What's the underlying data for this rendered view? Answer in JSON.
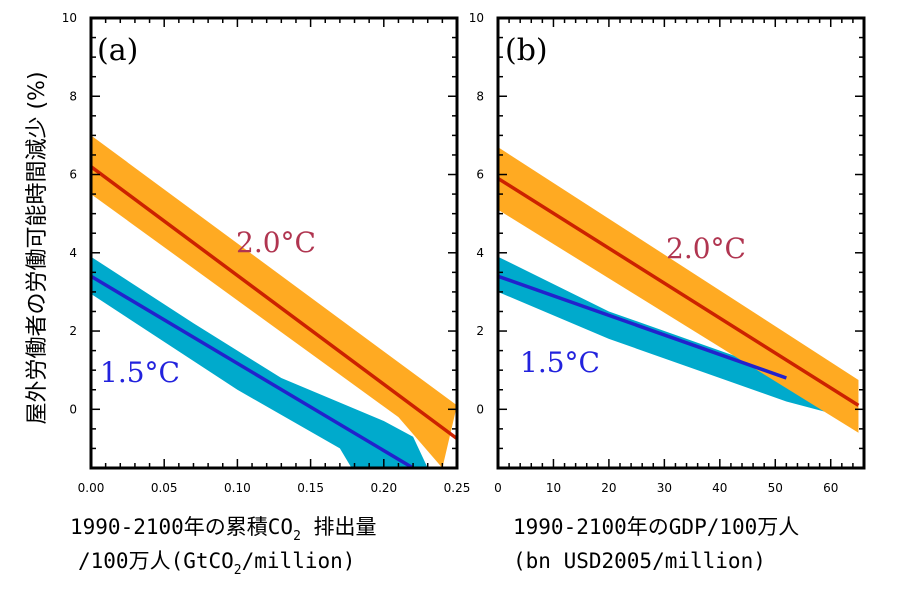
{
  "figure": {
    "ylabel": "屋外労働者の労働可能時間減少 (%)"
  },
  "chart_data": [
    {
      "type": "line",
      "panel_label": "(a)",
      "xlabel_line1_pre": "1990-2100年の累積CO",
      "xlabel_line1_sub": "2",
      "xlabel_line1_post": " 排出量",
      "xlabel_line2_pre": "/100万人(GtCO",
      "xlabel_line2_sub": "2",
      "xlabel_line2_post": "/million)",
      "xlim": [
        0,
        0.25
      ],
      "ylim": [
        -1.5,
        10
      ],
      "x_ticks": [
        0,
        0.05,
        0.1,
        0.15,
        0.2,
        0.25
      ],
      "x_tick_labels": [
        "0.00",
        "0.05",
        "0.10",
        "0.15",
        "0.20",
        "0.25"
      ],
      "y_ticks": [
        0,
        2,
        4,
        6,
        8,
        10
      ],
      "y_tick_labels": [
        "0",
        "2",
        "4",
        "6",
        "8",
        "10"
      ],
      "series": [
        {
          "name": "1.5°C",
          "line_color": "#2222cc",
          "band_color": "#00aacc",
          "label_color": "#2222dd",
          "line": [
            [
              0,
              3.4
            ],
            [
              0.22,
              -1.5
            ]
          ],
          "band_upper": [
            [
              0,
              3.9
            ],
            [
              0.07,
              2.2
            ],
            [
              0.13,
              0.8
            ],
            [
              0.2,
              -0.3
            ],
            [
              0.22,
              -0.7
            ],
            [
              0.23,
              -1.5
            ]
          ],
          "band_lower": [
            [
              0,
              2.95
            ],
            [
              0.1,
              0.5
            ],
            [
              0.17,
              -1.0
            ],
            [
              0.178,
              -1.5
            ]
          ]
        },
        {
          "name": "2.0°C",
          "line_color": "#cc2200",
          "band_color": "#ffaa22",
          "label_color": "#b03550",
          "line": [
            [
              0,
              6.2
            ],
            [
              0.25,
              -0.75
            ]
          ],
          "band_upper": [
            [
              0,
              7.0
            ],
            [
              0.25,
              0.1
            ]
          ],
          "band_lower": [
            [
              0,
              5.5
            ],
            [
              0.21,
              -0.2
            ],
            [
              0.24,
              -1.5
            ]
          ]
        }
      ]
    },
    {
      "type": "line",
      "panel_label": "(b)",
      "xlabel_line1": "1990-2100年のGDP/100万人",
      "xlabel_line2": "(bn USD2005/million)",
      "xlim": [
        0,
        66
      ],
      "ylim": [
        -1.5,
        10
      ],
      "x_ticks": [
        0,
        10,
        20,
        30,
        40,
        50,
        60
      ],
      "x_tick_labels": [
        "0",
        "10",
        "20",
        "30",
        "40",
        "50",
        "60"
      ],
      "y_ticks": [
        0,
        2,
        4,
        6,
        8,
        10
      ],
      "y_tick_labels": [
        "0",
        "2",
        "4",
        "6",
        "8",
        "10"
      ],
      "series": [
        {
          "name": "1.5°C",
          "line_color": "#2222cc",
          "band_color": "#00aacc",
          "label_color": "#2222dd",
          "line": [
            [
              0,
              3.4
            ],
            [
              52,
              0.8
            ]
          ],
          "band_upper": [
            [
              0,
              3.9
            ],
            [
              20,
              2.5
            ],
            [
              40,
              1.5
            ],
            [
              52,
              0.9
            ],
            [
              60,
              0.2
            ],
            [
              63,
              -0.1
            ]
          ],
          "band_lower": [
            [
              0,
              3.0
            ],
            [
              20,
              1.8
            ],
            [
              40,
              0.8
            ],
            [
              52,
              0.2
            ],
            [
              60,
              -0.1
            ],
            [
              63,
              -0.15
            ]
          ]
        },
        {
          "name": "2.0°C",
          "line_color": "#cc2200",
          "band_color": "#ffaa22",
          "label_color": "#b03550",
          "line": [
            [
              0,
              5.9
            ],
            [
              65,
              0.1
            ]
          ],
          "band_upper": [
            [
              0,
              6.7
            ],
            [
              65,
              0.75
            ]
          ],
          "band_lower": [
            [
              0,
              5.1
            ],
            [
              65,
              -0.6
            ]
          ]
        }
      ]
    }
  ]
}
